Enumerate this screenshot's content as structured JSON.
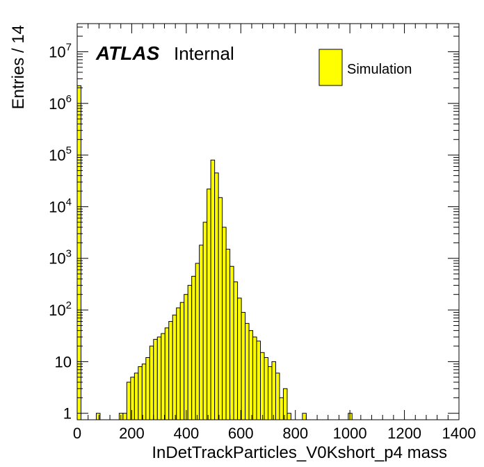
{
  "chart_data": {
    "type": "bar",
    "title": "",
    "xlabel": "InDetTrackParticles_V0Kshort_p4 mass",
    "ylabel": "Entries / 14",
    "xlim": [
      0,
      1400
    ],
    "ylim": [
      0.75,
      35000000
    ],
    "log_y": true,
    "bin_width": 14,
    "x_ticks": [
      "0",
      "200",
      "400",
      "600",
      "800",
      "1000",
      "1200",
      "1400"
    ],
    "y_ticks": [
      {
        "value": 1,
        "base": "1",
        "exp": ""
      },
      {
        "value": 10,
        "base": "10",
        "exp": ""
      },
      {
        "value": 100,
        "base": "10",
        "exp": "2"
      },
      {
        "value": 1000,
        "base": "10",
        "exp": "3"
      },
      {
        "value": 10000,
        "base": "10",
        "exp": "4"
      },
      {
        "value": 100000,
        "base": "10",
        "exp": "5"
      },
      {
        "value": 1000000,
        "base": "10",
        "exp": "6"
      },
      {
        "value": 10000000,
        "base": "10",
        "exp": "7"
      }
    ],
    "fill_color": "#ffff00",
    "line_color": "#000000",
    "series": [
      {
        "name": "Simulation",
        "bins": [
          [
            0,
            2200000
          ],
          [
            70,
            1
          ],
          [
            154,
            1
          ],
          [
            168,
            1
          ],
          [
            182,
            4
          ],
          [
            196,
            5
          ],
          [
            210,
            6
          ],
          [
            224,
            8
          ],
          [
            238,
            9
          ],
          [
            252,
            12
          ],
          [
            266,
            20
          ],
          [
            280,
            27
          ],
          [
            294,
            30
          ],
          [
            308,
            35
          ],
          [
            322,
            45
          ],
          [
            336,
            60
          ],
          [
            350,
            80
          ],
          [
            364,
            110
          ],
          [
            378,
            140
          ],
          [
            392,
            200
          ],
          [
            406,
            300
          ],
          [
            420,
            450
          ],
          [
            434,
            800
          ],
          [
            448,
            1800
          ],
          [
            462,
            5000
          ],
          [
            476,
            22000
          ],
          [
            490,
            80000
          ],
          [
            504,
            45000
          ],
          [
            518,
            15000
          ],
          [
            532,
            4000
          ],
          [
            546,
            1500
          ],
          [
            560,
            700
          ],
          [
            574,
            350
          ],
          [
            588,
            170
          ],
          [
            602,
            90
          ],
          [
            616,
            55
          ],
          [
            630,
            40
          ],
          [
            644,
            30
          ],
          [
            658,
            25
          ],
          [
            672,
            15
          ],
          [
            686,
            12
          ],
          [
            700,
            8
          ],
          [
            714,
            10
          ],
          [
            728,
            6
          ],
          [
            742,
            2
          ],
          [
            756,
            3
          ],
          [
            770,
            1
          ],
          [
            826,
            1
          ],
          [
            994,
            1
          ]
        ]
      }
    ],
    "legend": {
      "position": "top-right",
      "entries": [
        "Simulation"
      ]
    }
  },
  "labels": {
    "atlas": "ATLAS",
    "internal": "Internal"
  }
}
